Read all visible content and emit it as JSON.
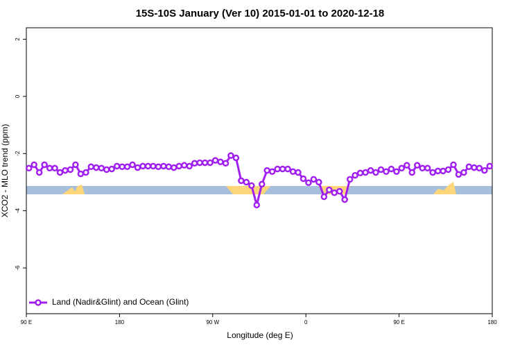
{
  "chart_data": {
    "type": "line",
    "title": "15S-10S January (Ver 10)   2015-01-01 to 2020-12-18",
    "xlabel": "Longitude (deg E)",
    "ylabel": "XCO2 - MLO trend (ppm)",
    "xlim": [
      90,
      540
    ],
    "xticks": [
      {
        "value": 90,
        "label": "90 E"
      },
      180,
      {
        "value": 270,
        "label": "90 W"
      },
      {
        "value": 360,
        "label": "0"
      },
      {
        "value": 450,
        "label": "90 E"
      },
      {
        "value": 540,
        "label": "180"
      }
    ],
    "ylim": [
      -7.6,
      2.4
    ],
    "yticks": [
      -6,
      -4,
      -2,
      0,
      2
    ],
    "legend": "bottom-left",
    "x": [
      92.5,
      97.5,
      102.5,
      107.5,
      112.5,
      117.5,
      122.5,
      127.5,
      132.5,
      137.5,
      142.5,
      147.5,
      152.5,
      157.5,
      162.5,
      167.5,
      172.5,
      177.5,
      182.5,
      187.5,
      192.5,
      197.5,
      202.5,
      207.5,
      212.5,
      217.5,
      222.5,
      227.5,
      232.5,
      237.5,
      242.5,
      247.5,
      252.5,
      257.5,
      262.5,
      267.5,
      272.5,
      277.5,
      282.5,
      287.5,
      292.5,
      297.5,
      302.5,
      307.5,
      312.5,
      317.5,
      322.5,
      327.5,
      332.5,
      337.5,
      342.5,
      347.5,
      352.5,
      357.5,
      362.5,
      367.5,
      372.5,
      377.5,
      382.5,
      387.5,
      392.5,
      397.5,
      402.5,
      407.5,
      412.5,
      417.5,
      422.5,
      427.5,
      432.5,
      437.5,
      442.5,
      447.5,
      452.5,
      457.5,
      462.5,
      467.5,
      472.5,
      477.5,
      482.5,
      487.5,
      492.5,
      497.5,
      502.5,
      507.5,
      512.5,
      517.5,
      522.5,
      527.5,
      532.5,
      537.5
    ],
    "series": [
      {
        "name": "Land (Nadir&Glint) and Ocean (Glint)",
        "color": "#a020f0",
        "values": [
          -2.51,
          -2.39,
          -2.66,
          -2.39,
          -2.51,
          -2.51,
          -2.66,
          -2.59,
          -2.56,
          -2.39,
          -2.71,
          -2.66,
          -2.46,
          -2.49,
          -2.51,
          -2.56,
          -2.54,
          -2.44,
          -2.46,
          -2.46,
          -2.39,
          -2.49,
          -2.44,
          -2.44,
          -2.44,
          -2.46,
          -2.44,
          -2.46,
          -2.49,
          -2.44,
          -2.41,
          -2.44,
          -2.34,
          -2.32,
          -2.32,
          -2.32,
          -2.24,
          -2.29,
          -2.34,
          -2.07,
          -2.15,
          -2.95,
          -3.0,
          -3.12,
          -3.8,
          -3.07,
          -2.59,
          -2.63,
          -2.54,
          -2.54,
          -2.54,
          -2.63,
          -2.66,
          -2.88,
          -3.02,
          -2.9,
          -3.0,
          -3.51,
          -3.27,
          -3.37,
          -3.32,
          -3.61,
          -2.9,
          -2.76,
          -2.68,
          -2.66,
          -2.59,
          -2.66,
          -2.56,
          -2.63,
          -2.54,
          -2.63,
          -2.51,
          -2.41,
          -2.66,
          -2.41,
          -2.51,
          -2.51,
          -2.66,
          -2.61,
          -2.61,
          -2.56,
          -2.39,
          -2.73,
          -2.66,
          -2.46,
          -2.49,
          -2.51,
          -2.59,
          -2.44
        ]
      }
    ]
  }
}
